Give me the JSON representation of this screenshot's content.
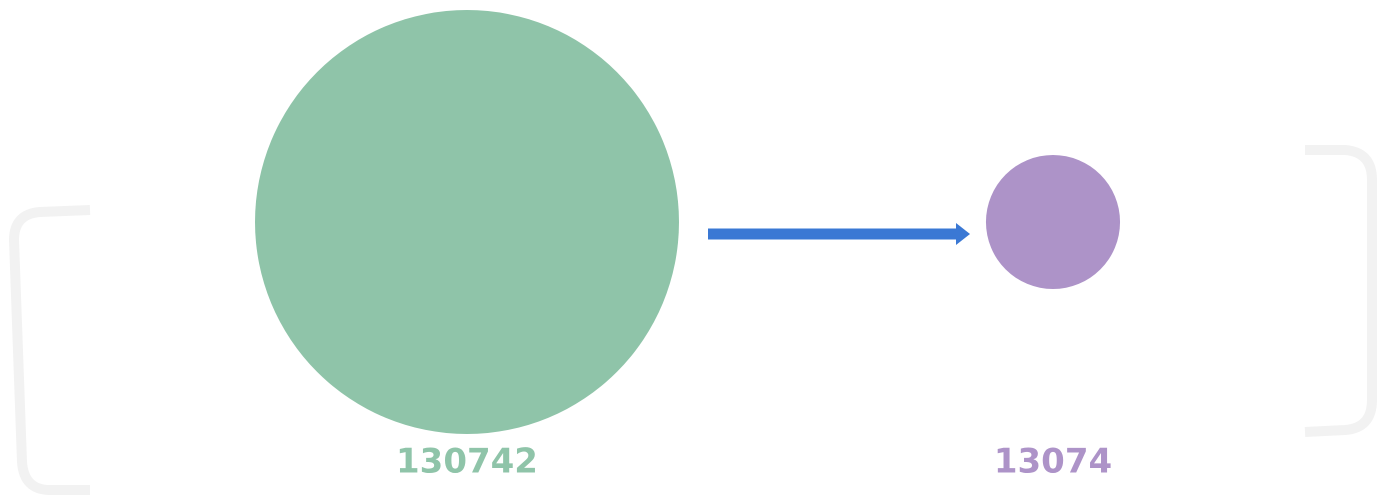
{
  "nodes": [
    {
      "value": 130742,
      "color": "#8fc4a9"
    },
    {
      "value": 13074,
      "color": "#ad93c8"
    }
  ]
}
